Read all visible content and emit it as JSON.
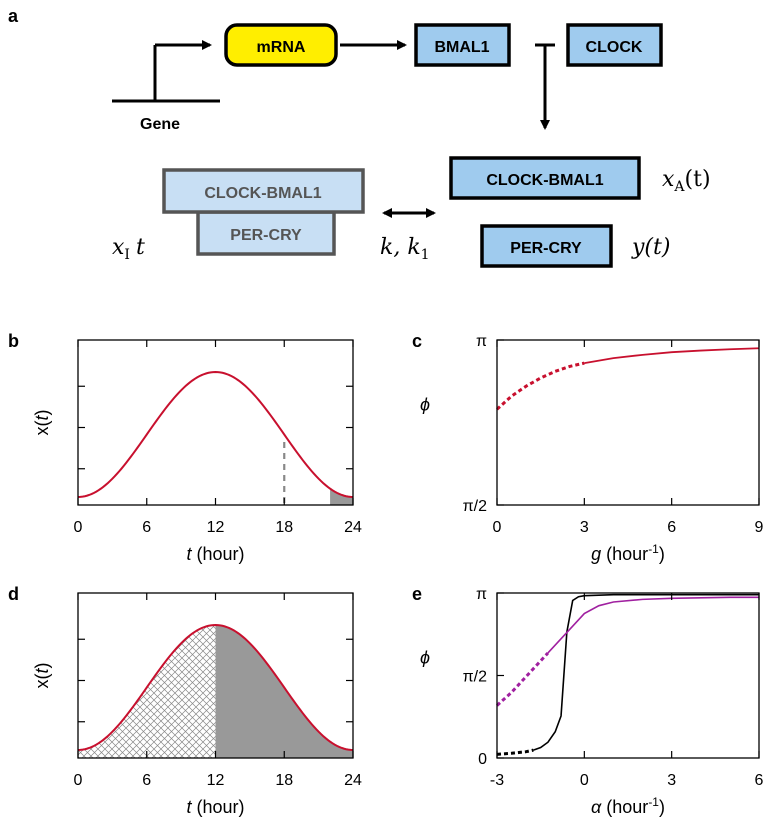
{
  "panels": {
    "a": "a",
    "b": "b",
    "c": "c",
    "d": "d",
    "e": "e"
  },
  "diagram": {
    "gene_label": "Gene",
    "mrna_label": "mRNA",
    "bmal1_label": "BMAL1",
    "clock_label": "CLOCK",
    "clock_bmal1_label": "CLOCK-BMAL1",
    "per_cry_label": "PER-CRY",
    "complex_top_label": "CLOCK-BMAL1",
    "complex_bottom_label": "PER-CRY",
    "xa_symbol": "x",
    "xa_sub": "A",
    "xa_arg": "(t)",
    "xi_symbol": "x",
    "xi_sub": "I",
    "xi_arg": "t",
    "y_label": "y(t)",
    "rates_label": "k, k",
    "rates_sub": "1",
    "colors": {
      "mrna_fill": "#ffee00",
      "protein_fill": "#9fcbee",
      "complex_fill": "#c8dff4",
      "complex_border": "#555555"
    }
  },
  "chart_data": [
    {
      "panel": "b",
      "type": "line",
      "function": "x(t) = 1 - cos(2*pi*t/24)",
      "x_range": [
        0,
        24
      ],
      "xticks": [
        "0",
        "6",
        "12",
        "18",
        "24"
      ],
      "xlabel_var": "t",
      "xlabel_unit": " (hour)",
      "ylabel": "x(t)",
      "dashed_marker_x": 18,
      "shaded_interval": [
        22,
        24
      ],
      "line_color": "#c8102e"
    },
    {
      "panel": "c",
      "type": "line",
      "x_range": [
        0,
        9
      ],
      "y_range_label": [
        "π/2",
        "π"
      ],
      "xticks": [
        "0",
        "3",
        "6",
        "9"
      ],
      "yticks": [
        "π/2",
        "π"
      ],
      "xlabel_var": "g",
      "xlabel_unit": " (hour",
      "xlabel_sup": "-1",
      "xlabel_close": ")",
      "ylabel": "ϕ",
      "series": [
        {
          "x": [
            0,
            0.5,
            1,
            1.5,
            2,
            2.5,
            3
          ],
          "y": [
            0.79,
            0.83,
            0.86,
            0.885,
            0.905,
            0.92,
            0.93
          ],
          "style": "dashed"
        },
        {
          "x": [
            3,
            4,
            5,
            6,
            7,
            8,
            9
          ],
          "y": [
            0.93,
            0.945,
            0.955,
            0.963,
            0.968,
            0.972,
            0.975
          ],
          "style": "solid"
        }
      ],
      "line_color": "#c8102e"
    },
    {
      "panel": "d",
      "type": "area",
      "function": "x(t) = 1 - cos(2*pi*t/24)",
      "x_range": [
        0,
        24
      ],
      "xticks": [
        "0",
        "6",
        "12",
        "18",
        "24"
      ],
      "xlabel_var": "t",
      "xlabel_unit": " (hour)",
      "ylabel": "x(t)",
      "hatched_interval": [
        0,
        12
      ],
      "shaded_interval": [
        12,
        24
      ],
      "line_color": "#c8102e"
    },
    {
      "panel": "e",
      "type": "line",
      "x_range": [
        -3,
        6
      ],
      "xticks": [
        "-3",
        "0",
        "3",
        "6"
      ],
      "yticks": [
        "0",
        "π/2",
        "π"
      ],
      "xlabel_var": "α",
      "xlabel_unit": " (hour",
      "xlabel_sup": "-1",
      "xlabel_close": ")",
      "ylabel": "ϕ",
      "series": [
        {
          "color": "#000000",
          "dashed_x": [
            -3,
            -2.5,
            -2,
            -1.75
          ],
          "dashed_y": [
            0.07,
            0.09,
            0.12,
            0.15
          ],
          "solid_x": [
            -1.75,
            -1.5,
            -1.25,
            -1,
            -0.8,
            -0.6,
            -0.4,
            -0.2,
            0,
            0.5,
            1,
            2,
            3,
            4,
            5,
            6
          ],
          "solid_y": [
            0.15,
            0.2,
            0.3,
            0.5,
            0.8,
            2.4,
            3.0,
            3.07,
            3.09,
            3.1,
            3.11,
            3.11,
            3.11,
            3.11,
            3.11,
            3.11
          ]
        },
        {
          "color": "#a020a0",
          "dashed_x": [
            -3,
            -2.5,
            -2,
            -1.5,
            -1.25
          ],
          "dashed_y": [
            1.0,
            1.25,
            1.55,
            1.85,
            2.0
          ],
          "solid_x": [
            -1.25,
            -1,
            -0.75,
            -0.5,
            -0.25,
            0,
            0.5,
            1,
            2,
            3,
            4,
            5,
            6
          ],
          "solid_y": [
            2.0,
            2.15,
            2.3,
            2.45,
            2.6,
            2.75,
            2.9,
            2.97,
            3.02,
            3.04,
            3.05,
            3.06,
            3.06
          ]
        }
      ],
      "y_range": [
        0,
        3.14159
      ]
    }
  ]
}
